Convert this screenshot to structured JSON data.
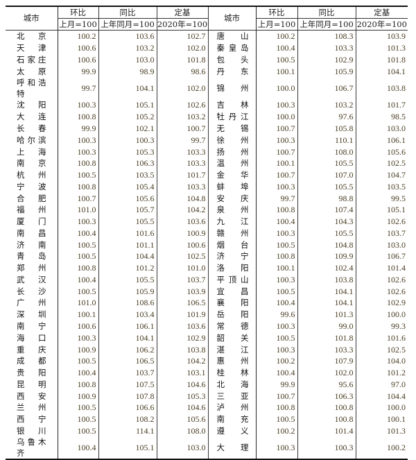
{
  "header": {
    "city": "城市",
    "mom": "环比",
    "mom_base": "上月=100",
    "yoy": "同比",
    "yoy_base": "上年同月=100",
    "fixed": "定基",
    "fixed_base": "2020年=100"
  },
  "left_rows": [
    [
      "北京",
      "100.2",
      "103.6",
      "102.7"
    ],
    [
      "天津",
      "100.6",
      "103.2",
      "102.0"
    ],
    [
      "石家庄",
      "100.6",
      "103.0",
      "101.8"
    ],
    [
      "太原",
      "99.9",
      "98.9",
      "98.6"
    ],
    [
      "呼和浩特",
      "99.7",
      "104.1",
      "102.0"
    ],
    [
      "沈阳",
      "100.3",
      "105.1",
      "102.6"
    ],
    [
      "大连",
      "100.8",
      "105.2",
      "103.2"
    ],
    [
      "长春",
      "99.9",
      "102.1",
      "100.7"
    ],
    [
      "哈尔滨",
      "100.3",
      "100.3",
      "99.7"
    ],
    [
      "上海",
      "100.3",
      "105.3",
      "103.3"
    ],
    [
      "南京",
      "100.8",
      "106.3",
      "103.3"
    ],
    [
      "杭州",
      "100.5",
      "103.5",
      "101.7"
    ],
    [
      "宁波",
      "100.8",
      "105.4",
      "103.3"
    ],
    [
      "合肥",
      "100.7",
      "105.6",
      "104.8"
    ],
    [
      "福州",
      "101.0",
      "105.7",
      "104.2"
    ],
    [
      "厦门",
      "100.3",
      "105.5",
      "103.6"
    ],
    [
      "南昌",
      "100.4",
      "101.6",
      "100.9"
    ],
    [
      "济南",
      "100.5",
      "101.1",
      "100.6"
    ],
    [
      "青岛",
      "100.5",
      "104.4",
      "102.5"
    ],
    [
      "郑州",
      "100.8",
      "101.2",
      "101.0"
    ],
    [
      "武汉",
      "100.4",
      "105.5",
      "103.7"
    ],
    [
      "长沙",
      "100.5",
      "105.9",
      "103.9"
    ],
    [
      "广州",
      "101.0",
      "108.6",
      "106.5"
    ],
    [
      "深圳",
      "100.1",
      "103.4",
      "101.9"
    ],
    [
      "南宁",
      "100.6",
      "106.1",
      "103.6"
    ],
    [
      "海口",
      "100.3",
      "104.1",
      "102.9"
    ],
    [
      "重庆",
      "100.9",
      "106.2",
      "103.8"
    ],
    [
      "成都",
      "100.5",
      "106.5",
      "104.2"
    ],
    [
      "贵阳",
      "100.4",
      "103.7",
      "103.1"
    ],
    [
      "昆明",
      "100.8",
      "107.5",
      "104.6"
    ],
    [
      "西安",
      "100.9",
      "107.8",
      "105.3"
    ],
    [
      "兰州",
      "100.5",
      "106.6",
      "104.6"
    ],
    [
      "西宁",
      "100.5",
      "108.2",
      "105.6"
    ],
    [
      "银川",
      "100.5",
      "114.1",
      "108.0"
    ],
    [
      "乌鲁木齐",
      "100.4",
      "105.1",
      "103.0"
    ]
  ],
  "right_rows": [
    [
      "唐山",
      "100.2",
      "108.3",
      "103.9"
    ],
    [
      "秦皇岛",
      "100.4",
      "103.3",
      "101.3"
    ],
    [
      "包头",
      "100.5",
      "102.9",
      "101.8"
    ],
    [
      "丹东",
      "100.1",
      "105.9",
      "104.1"
    ],
    [
      "锦州",
      "100.0",
      "106.7",
      "103.8"
    ],
    [
      "吉林",
      "100.3",
      "103.2",
      "101.7"
    ],
    [
      "牡丹江",
      "100.0",
      "97.6",
      "98.5"
    ],
    [
      "无锡",
      "100.7",
      "105.8",
      "103.0"
    ],
    [
      "徐州",
      "100.3",
      "110.1",
      "106.1"
    ],
    [
      "扬州",
      "100.7",
      "108.0",
      "105.6"
    ],
    [
      "温州",
      "100.1",
      "105.5",
      "102.5"
    ],
    [
      "金华",
      "100.7",
      "107.0",
      "104.7"
    ],
    [
      "蚌埠",
      "100.3",
      "105.5",
      "103.5"
    ],
    [
      "安庆",
      "99.7",
      "98.8",
      "99.5"
    ],
    [
      "泉州",
      "100.8",
      "107.4",
      "105.1"
    ],
    [
      "九江",
      "100.4",
      "104.3",
      "102.6"
    ],
    [
      "赣州",
      "100.3",
      "105.5",
      "103.7"
    ],
    [
      "烟台",
      "100.5",
      "104.8",
      "103.0"
    ],
    [
      "济宁",
      "100.8",
      "109.9",
      "106.7"
    ],
    [
      "洛阳",
      "100.1",
      "102.4",
      "101.4"
    ],
    [
      "平顶山",
      "100.3",
      "103.8",
      "102.6"
    ],
    [
      "宜昌",
      "100.5",
      "104.1",
      "102.6"
    ],
    [
      "襄阳",
      "100.4",
      "104.1",
      "102.9"
    ],
    [
      "岳阳",
      "99.6",
      "101.3",
      "100.0"
    ],
    [
      "常德",
      "100.3",
      "99.0",
      "99.3"
    ],
    [
      "韶关",
      "100.5",
      "101.8",
      "101.6"
    ],
    [
      "湛江",
      "100.3",
      "103.3",
      "102.5"
    ],
    [
      "惠州",
      "100.2",
      "107.9",
      "104.0"
    ],
    [
      "桂林",
      "100.4",
      "102.0",
      "101.2"
    ],
    [
      "北海",
      "99.9",
      "95.6",
      "97.0"
    ],
    [
      "三亚",
      "100.7",
      "106.3",
      "104.4"
    ],
    [
      "泸州",
      "100.8",
      "100.8",
      "100.0"
    ],
    [
      "南充",
      "100.5",
      "100.8",
      "100.1"
    ],
    [
      "遵义",
      "100.2",
      "101.4",
      "101.3"
    ],
    [
      "大理",
      "100.3",
      "100.3",
      "100.2"
    ]
  ]
}
